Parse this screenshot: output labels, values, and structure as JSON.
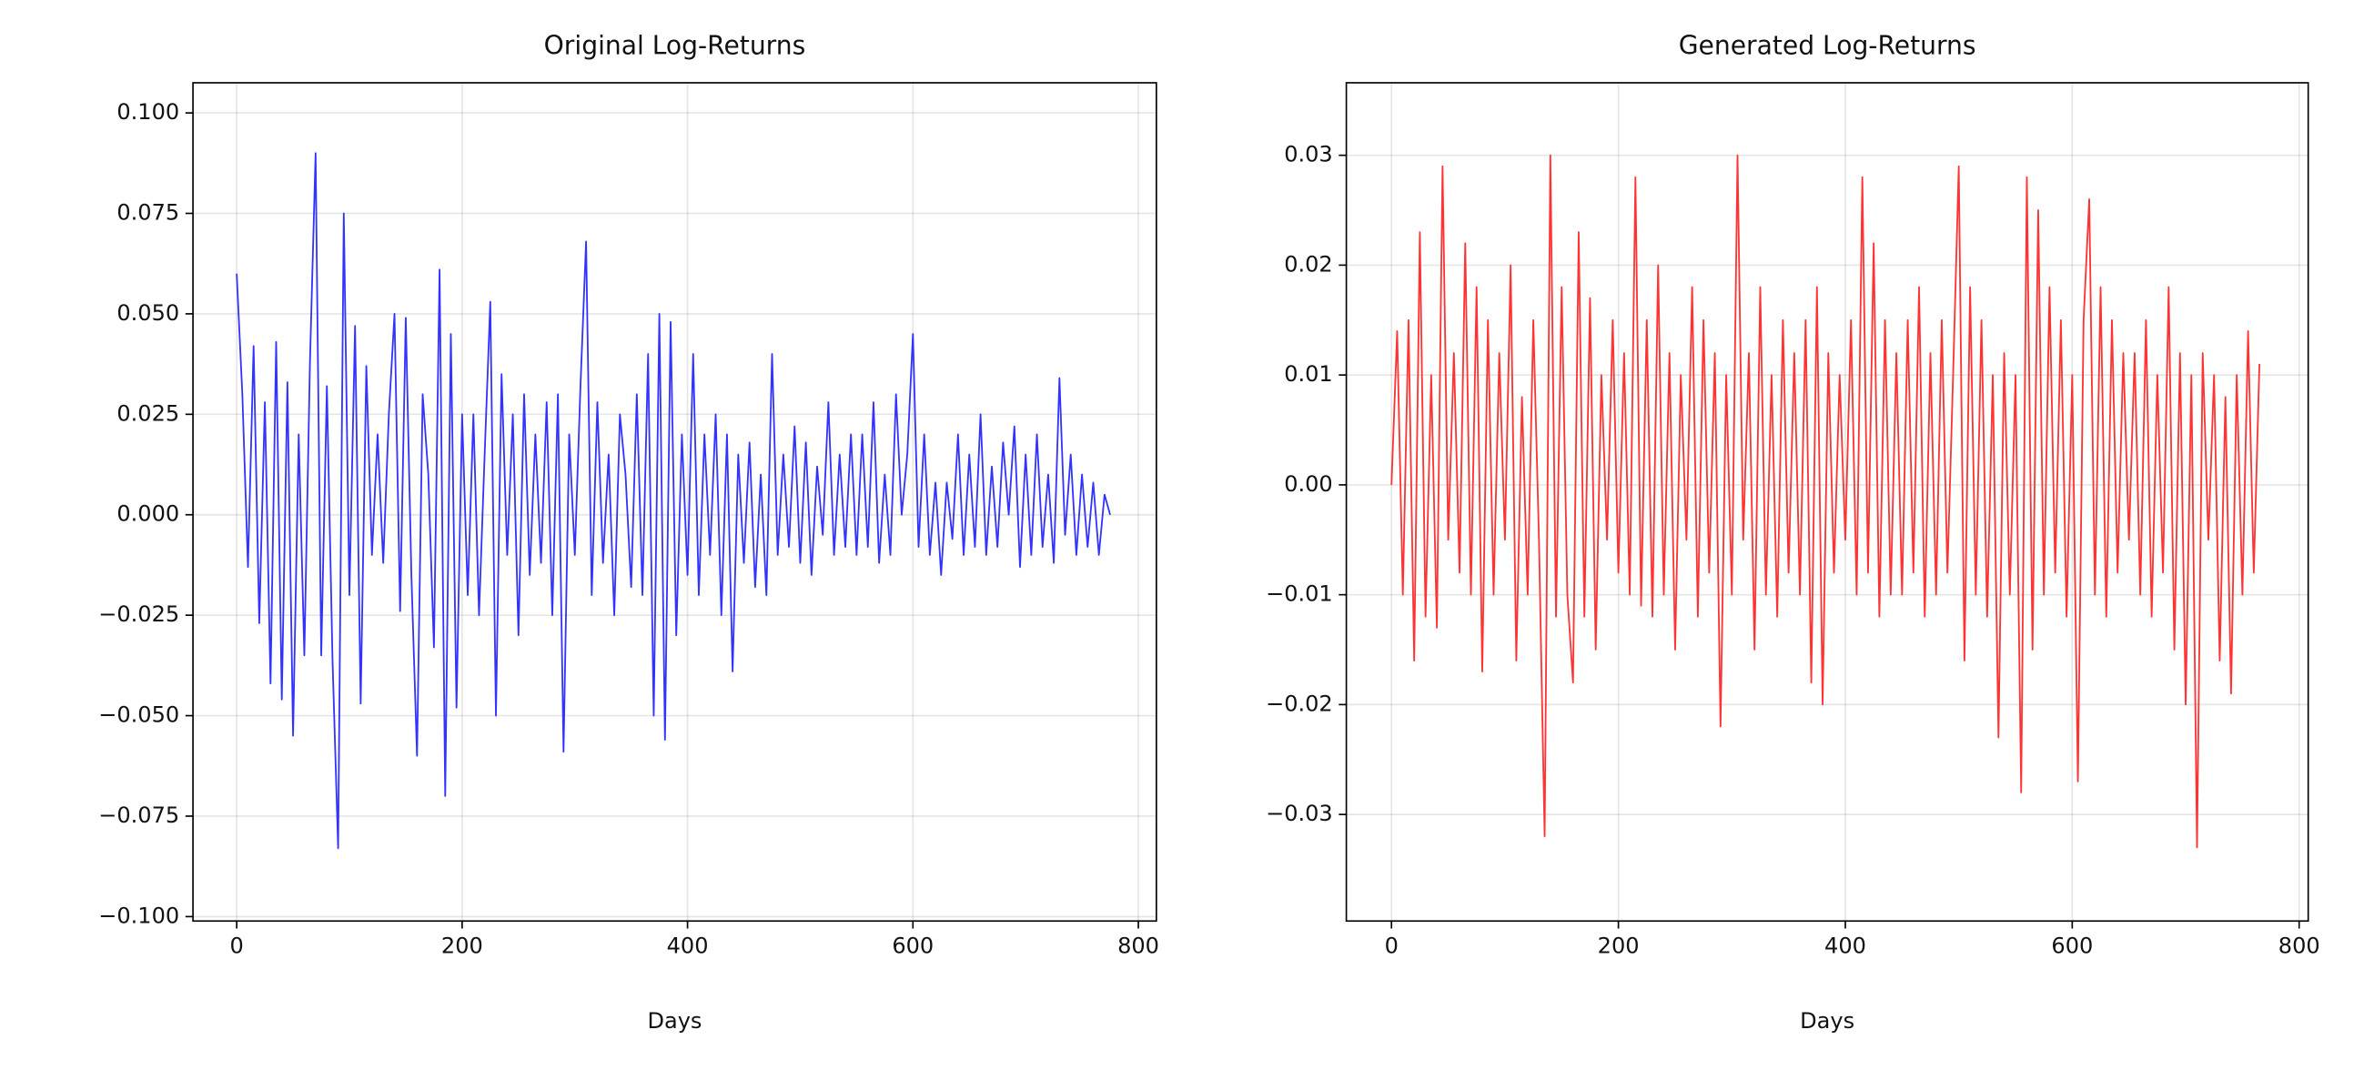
{
  "chart_data": [
    {
      "type": "line",
      "title": "Original Log-Returns",
      "xlabel": "Days",
      "color": "#3333ff",
      "grid": true,
      "x": [
        0,
        5,
        10,
        15,
        20,
        25,
        30,
        35,
        40,
        45,
        50,
        55,
        60,
        65,
        70,
        75,
        80,
        85,
        90,
        95,
        100,
        105,
        110,
        115,
        120,
        125,
        130,
        135,
        140,
        145,
        150,
        155,
        160,
        165,
        170,
        175,
        180,
        185,
        190,
        195,
        200,
        205,
        210,
        215,
        220,
        225,
        230,
        235,
        240,
        245,
        250,
        255,
        260,
        265,
        270,
        275,
        280,
        285,
        290,
        295,
        300,
        305,
        310,
        315,
        320,
        325,
        330,
        335,
        340,
        345,
        350,
        355,
        360,
        365,
        370,
        375,
        380,
        385,
        390,
        395,
        400,
        405,
        410,
        415,
        420,
        425,
        430,
        435,
        440,
        445,
        450,
        455,
        460,
        465,
        470,
        475,
        480,
        485,
        490,
        495,
        500,
        505,
        510,
        515,
        520,
        525,
        530,
        535,
        540,
        545,
        550,
        555,
        560,
        565,
        570,
        575,
        580,
        585,
        590,
        595,
        600,
        605,
        610,
        615,
        620,
        625,
        630,
        635,
        640,
        645,
        650,
        655,
        660,
        665,
        670,
        675,
        680,
        685,
        690,
        695,
        700,
        705,
        710,
        715,
        720,
        725,
        730,
        735,
        740,
        745,
        750,
        755,
        760,
        765,
        770,
        775
      ],
      "values": [
        0.06,
        0.03,
        -0.013,
        0.042,
        -0.027,
        0.028,
        -0.042,
        0.043,
        -0.046,
        0.033,
        -0.055,
        0.02,
        -0.035,
        0.038,
        0.09,
        -0.035,
        0.032,
        -0.036,
        -0.083,
        0.075,
        -0.02,
        0.047,
        -0.047,
        0.037,
        -0.01,
        0.02,
        -0.012,
        0.025,
        0.05,
        -0.024,
        0.049,
        -0.015,
        -0.06,
        0.03,
        0.01,
        -0.033,
        0.061,
        -0.07,
        0.045,
        -0.048,
        0.025,
        -0.02,
        0.025,
        -0.025,
        0.015,
        0.053,
        -0.05,
        0.035,
        -0.01,
        0.025,
        -0.03,
        0.03,
        -0.015,
        0.02,
        -0.012,
        0.028,
        -0.025,
        0.03,
        -0.059,
        0.02,
        -0.01,
        0.032,
        0.068,
        -0.02,
        0.028,
        -0.012,
        0.015,
        -0.025,
        0.025,
        0.01,
        -0.018,
        0.03,
        -0.02,
        0.04,
        -0.05,
        0.05,
        -0.056,
        0.048,
        -0.03,
        0.02,
        -0.015,
        0.04,
        -0.02,
        0.02,
        -0.01,
        0.025,
        -0.025,
        0.02,
        -0.039,
        0.015,
        -0.012,
        0.018,
        -0.018,
        0.01,
        -0.02,
        0.04,
        -0.01,
        0.015,
        -0.008,
        0.022,
        -0.012,
        0.018,
        -0.015,
        0.012,
        -0.005,
        0.028,
        -0.01,
        0.015,
        -0.008,
        0.02,
        -0.01,
        0.02,
        -0.008,
        0.028,
        -0.012,
        0.01,
        -0.01,
        0.03,
        0.0,
        0.015,
        0.045,
        -0.008,
        0.02,
        -0.01,
        0.008,
        -0.015,
        0.008,
        -0.006,
        0.02,
        -0.01,
        0.015,
        -0.008,
        0.025,
        -0.01,
        0.012,
        -0.008,
        0.018,
        0.0,
        0.022,
        -0.013,
        0.015,
        -0.01,
        0.02,
        -0.008,
        0.01,
        -0.012,
        0.034,
        -0.005,
        0.015,
        -0.01,
        0.01,
        -0.008,
        0.008,
        -0.01,
        0.005,
        0.0
      ],
      "xlim": [
        -38.8,
        816
      ],
      "xticks": [
        0,
        200,
        400,
        600,
        800
      ],
      "ylim": [
        -0.1011,
        0.1075
      ],
      "yticks": [
        {
          "value": -0.1,
          "label": "−0.100"
        },
        {
          "value": -0.075,
          "label": "−0.075"
        },
        {
          "value": -0.05,
          "label": "−0.050"
        },
        {
          "value": -0.025,
          "label": "−0.025"
        },
        {
          "value": 0,
          "label": "0.000"
        },
        {
          "value": 0.025,
          "label": "0.025"
        },
        {
          "value": 0.05,
          "label": "0.050"
        },
        {
          "value": 0.075,
          "label": "0.075"
        },
        {
          "value": 0.1,
          "label": "0.100"
        }
      ]
    },
    {
      "type": "line",
      "title": "Generated Log-Returns",
      "xlabel": "Days",
      "color": "#ff3333",
      "grid": true,
      "x": [
        0,
        5,
        10,
        15,
        20,
        25,
        30,
        35,
        40,
        45,
        50,
        55,
        60,
        65,
        70,
        75,
        80,
        85,
        90,
        95,
        100,
        105,
        110,
        115,
        120,
        125,
        130,
        135,
        140,
        145,
        150,
        155,
        160,
        165,
        170,
        175,
        180,
        185,
        190,
        195,
        200,
        205,
        210,
        215,
        220,
        225,
        230,
        235,
        240,
        245,
        250,
        255,
        260,
        265,
        270,
        275,
        280,
        285,
        290,
        295,
        300,
        305,
        310,
        315,
        320,
        325,
        330,
        335,
        340,
        345,
        350,
        355,
        360,
        365,
        370,
        375,
        380,
        385,
        390,
        395,
        400,
        405,
        410,
        415,
        420,
        425,
        430,
        435,
        440,
        445,
        450,
        455,
        460,
        465,
        470,
        475,
        480,
        485,
        490,
        495,
        500,
        505,
        510,
        515,
        520,
        525,
        530,
        535,
        540,
        545,
        550,
        555,
        560,
        565,
        570,
        575,
        580,
        585,
        590,
        595,
        600,
        605,
        610,
        615,
        620,
        625,
        630,
        635,
        640,
        645,
        650,
        655,
        660,
        665,
        670,
        675,
        680,
        685,
        690,
        695,
        700,
        705,
        710,
        715,
        720,
        725,
        730,
        735,
        740,
        745,
        750,
        755,
        760,
        765
      ],
      "values": [
        0.0,
        0.014,
        -0.01,
        0.015,
        -0.016,
        0.023,
        -0.012,
        0.01,
        -0.013,
        0.029,
        -0.005,
        0.012,
        -0.008,
        0.022,
        -0.01,
        0.018,
        -0.017,
        0.015,
        -0.01,
        0.012,
        -0.005,
        0.02,
        -0.016,
        0.008,
        -0.01,
        0.015,
        -0.005,
        -0.032,
        0.03,
        -0.012,
        0.018,
        -0.01,
        -0.018,
        0.023,
        -0.012,
        0.017,
        -0.015,
        0.01,
        -0.005,
        0.015,
        -0.008,
        0.012,
        -0.01,
        0.028,
        -0.011,
        0.015,
        -0.012,
        0.02,
        -0.01,
        0.012,
        -0.015,
        0.01,
        -0.005,
        0.018,
        -0.012,
        0.015,
        -0.008,
        0.012,
        -0.022,
        0.01,
        -0.01,
        0.03,
        -0.005,
        0.012,
        -0.015,
        0.018,
        -0.01,
        0.01,
        -0.012,
        0.015,
        -0.008,
        0.012,
        -0.01,
        0.015,
        -0.018,
        0.018,
        -0.02,
        0.012,
        -0.008,
        0.01,
        -0.005,
        0.015,
        -0.01,
        0.028,
        -0.008,
        0.022,
        -0.012,
        0.015,
        -0.01,
        0.012,
        -0.01,
        0.015,
        -0.008,
        0.018,
        -0.012,
        0.012,
        -0.01,
        0.015,
        -0.008,
        0.01,
        0.029,
        -0.016,
        0.018,
        -0.01,
        0.015,
        -0.012,
        0.01,
        -0.023,
        0.012,
        -0.01,
        0.01,
        -0.028,
        0.028,
        -0.015,
        0.025,
        -0.01,
        0.018,
        -0.008,
        0.015,
        -0.012,
        0.01,
        -0.027,
        0.015,
        0.026,
        -0.01,
        0.018,
        -0.012,
        0.015,
        -0.008,
        0.012,
        -0.005,
        0.012,
        -0.01,
        0.015,
        -0.012,
        0.01,
        -0.008,
        0.018,
        -0.015,
        0.012,
        -0.02,
        0.01,
        -0.033,
        0.012,
        -0.005,
        0.01,
        -0.016,
        0.008,
        -0.019,
        0.01,
        -0.01,
        0.014,
        -0.008,
        0.011
      ],
      "xlim": [
        -39.8,
        808
      ],
      "xticks": [
        0,
        200,
        400,
        600,
        800
      ],
      "ylim": [
        -0.0397,
        0.0366
      ],
      "yticks": [
        {
          "value": -0.03,
          "label": "−0.03"
        },
        {
          "value": -0.02,
          "label": "−0.02"
        },
        {
          "value": -0.01,
          "label": "−0.01"
        },
        {
          "value": 0,
          "label": "0.00"
        },
        {
          "value": 0.01,
          "label": "0.01"
        },
        {
          "value": 0.02,
          "label": "0.02"
        },
        {
          "value": 0.03,
          "label": "0.03"
        }
      ]
    }
  ]
}
